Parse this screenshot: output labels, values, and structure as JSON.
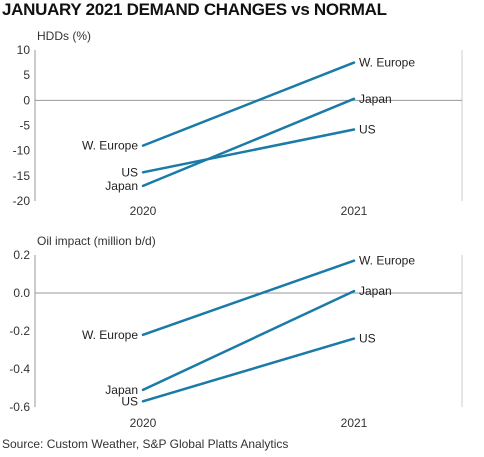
{
  "title": "JANUARY 2021 DEMAND CHANGES vs NORMAL",
  "source": "Source: Custom Weather, S&P Global Platts Analytics",
  "colors": {
    "line": "#1a7aa8",
    "axis": "#999999"
  },
  "chart_data": [
    {
      "type": "line",
      "ylabel": "HDDs (%)",
      "x": [
        "2020",
        "2021"
      ],
      "ylim": [
        -20,
        10
      ],
      "yticks": [
        "10",
        "5",
        "0",
        "-5",
        "-10",
        "-15",
        "-20"
      ],
      "ytick_values": [
        10,
        5,
        0,
        -5,
        -10,
        -15,
        -20
      ],
      "zero_line": 0,
      "grid": false,
      "series": [
        {
          "name": "W. Europe",
          "values": [
            -9.0,
            7.5
          ]
        },
        {
          "name": "Japan",
          "values": [
            -17.0,
            0.3
          ]
        },
        {
          "name": "US",
          "values": [
            -14.3,
            -5.8
          ]
        }
      ]
    },
    {
      "type": "line",
      "ylabel": "Oil impact (million b/d)",
      "x": [
        "2020",
        "2021"
      ],
      "ylim": [
        -0.6,
        0.2
      ],
      "yticks": [
        "0.2",
        "0.0",
        "-0.2",
        "-0.4",
        "-0.6"
      ],
      "ytick_values": [
        0.2,
        0.0,
        -0.2,
        -0.4,
        -0.6
      ],
      "zero_line": 0,
      "grid": false,
      "series": [
        {
          "name": "W. Europe",
          "values": [
            -0.22,
            0.17
          ]
        },
        {
          "name": "Japan",
          "values": [
            -0.51,
            0.01
          ]
        },
        {
          "name": "US",
          "values": [
            -0.57,
            -0.24
          ]
        }
      ]
    }
  ]
}
